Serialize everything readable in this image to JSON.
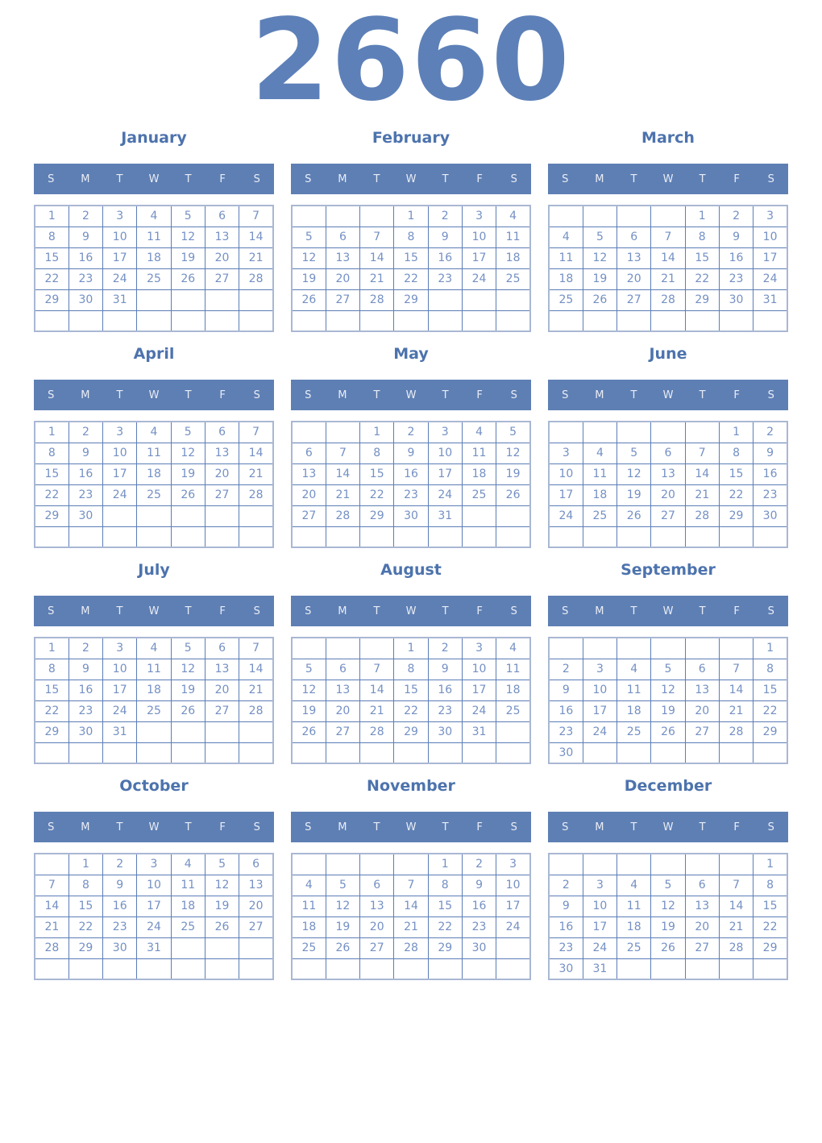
{
  "year": "2660",
  "weekday_headers": [
    "S",
    "M",
    "T",
    "W",
    "T",
    "F",
    "S"
  ],
  "colors": {
    "year_text": "#5d80b8",
    "month_title": "#4d73ad",
    "weekday_bar_bg": "#5e7fb4",
    "weekday_bar_text": "#e9edf5",
    "cell_border": "#5b7db6",
    "outer_border": "#a9b7d3",
    "day_text": "#7490c4"
  },
  "months": [
    {
      "name": "January",
      "weeks": [
        [
          "1",
          "2",
          "3",
          "4",
          "5",
          "6",
          "7"
        ],
        [
          "8",
          "9",
          "10",
          "11",
          "12",
          "13",
          "14"
        ],
        [
          "15",
          "16",
          "17",
          "18",
          "19",
          "20",
          "21"
        ],
        [
          "22",
          "23",
          "24",
          "25",
          "26",
          "27",
          "28"
        ],
        [
          "29",
          "30",
          "31",
          "",
          "",
          "",
          ""
        ],
        [
          "",
          "",
          "",
          "",
          "",
          "",
          ""
        ]
      ]
    },
    {
      "name": "February",
      "weeks": [
        [
          "",
          "",
          "",
          "1",
          "2",
          "3",
          "4"
        ],
        [
          "5",
          "6",
          "7",
          "8",
          "9",
          "10",
          "11"
        ],
        [
          "12",
          "13",
          "14",
          "15",
          "16",
          "17",
          "18"
        ],
        [
          "19",
          "20",
          "21",
          "22",
          "23",
          "24",
          "25"
        ],
        [
          "26",
          "27",
          "28",
          "29",
          "",
          "",
          ""
        ],
        [
          "",
          "",
          "",
          "",
          "",
          "",
          ""
        ]
      ]
    },
    {
      "name": "March",
      "weeks": [
        [
          "",
          "",
          "",
          "",
          "1",
          "2",
          "3"
        ],
        [
          "4",
          "5",
          "6",
          "7",
          "8",
          "9",
          "10"
        ],
        [
          "11",
          "12",
          "13",
          "14",
          "15",
          "16",
          "17"
        ],
        [
          "18",
          "19",
          "20",
          "21",
          "22",
          "23",
          "24"
        ],
        [
          "25",
          "26",
          "27",
          "28",
          "29",
          "30",
          "31"
        ],
        [
          "",
          "",
          "",
          "",
          "",
          "",
          ""
        ]
      ]
    },
    {
      "name": "April",
      "weeks": [
        [
          "1",
          "2",
          "3",
          "4",
          "5",
          "6",
          "7"
        ],
        [
          "8",
          "9",
          "10",
          "11",
          "12",
          "13",
          "14"
        ],
        [
          "15",
          "16",
          "17",
          "18",
          "19",
          "20",
          "21"
        ],
        [
          "22",
          "23",
          "24",
          "25",
          "26",
          "27",
          "28"
        ],
        [
          "29",
          "30",
          "",
          "",
          "",
          "",
          ""
        ],
        [
          "",
          "",
          "",
          "",
          "",
          "",
          ""
        ]
      ]
    },
    {
      "name": "May",
      "weeks": [
        [
          "",
          "",
          "1",
          "2",
          "3",
          "4",
          "5"
        ],
        [
          "6",
          "7",
          "8",
          "9",
          "10",
          "11",
          "12"
        ],
        [
          "13",
          "14",
          "15",
          "16",
          "17",
          "18",
          "19"
        ],
        [
          "20",
          "21",
          "22",
          "23",
          "24",
          "25",
          "26"
        ],
        [
          "27",
          "28",
          "29",
          "30",
          "31",
          "",
          ""
        ],
        [
          "",
          "",
          "",
          "",
          "",
          "",
          ""
        ]
      ]
    },
    {
      "name": "June",
      "weeks": [
        [
          "",
          "",
          "",
          "",
          "",
          "1",
          "2"
        ],
        [
          "3",
          "4",
          "5",
          "6",
          "7",
          "8",
          "9"
        ],
        [
          "10",
          "11",
          "12",
          "13",
          "14",
          "15",
          "16"
        ],
        [
          "17",
          "18",
          "19",
          "20",
          "21",
          "22",
          "23"
        ],
        [
          "24",
          "25",
          "26",
          "27",
          "28",
          "29",
          "30"
        ],
        [
          "",
          "",
          "",
          "",
          "",
          "",
          ""
        ]
      ]
    },
    {
      "name": "July",
      "weeks": [
        [
          "1",
          "2",
          "3",
          "4",
          "5",
          "6",
          "7"
        ],
        [
          "8",
          "9",
          "10",
          "11",
          "12",
          "13",
          "14"
        ],
        [
          "15",
          "16",
          "17",
          "18",
          "19",
          "20",
          "21"
        ],
        [
          "22",
          "23",
          "24",
          "25",
          "26",
          "27",
          "28"
        ],
        [
          "29",
          "30",
          "31",
          "",
          "",
          "",
          ""
        ],
        [
          "",
          "",
          "",
          "",
          "",
          "",
          ""
        ]
      ]
    },
    {
      "name": "August",
      "weeks": [
        [
          "",
          "",
          "",
          "1",
          "2",
          "3",
          "4"
        ],
        [
          "5",
          "6",
          "7",
          "8",
          "9",
          "10",
          "11"
        ],
        [
          "12",
          "13",
          "14",
          "15",
          "16",
          "17",
          "18"
        ],
        [
          "19",
          "20",
          "21",
          "22",
          "23",
          "24",
          "25"
        ],
        [
          "26",
          "27",
          "28",
          "29",
          "30",
          "31",
          ""
        ],
        [
          "",
          "",
          "",
          "",
          "",
          "",
          ""
        ]
      ]
    },
    {
      "name": "September",
      "weeks": [
        [
          "",
          "",
          "",
          "",
          "",
          "",
          "1"
        ],
        [
          "2",
          "3",
          "4",
          "5",
          "6",
          "7",
          "8"
        ],
        [
          "9",
          "10",
          "11",
          "12",
          "13",
          "14",
          "15"
        ],
        [
          "16",
          "17",
          "18",
          "19",
          "20",
          "21",
          "22"
        ],
        [
          "23",
          "24",
          "25",
          "26",
          "27",
          "28",
          "29"
        ],
        [
          "30",
          "",
          "",
          "",
          "",
          "",
          ""
        ]
      ]
    },
    {
      "name": "October",
      "weeks": [
        [
          "",
          "1",
          "2",
          "3",
          "4",
          "5",
          "6"
        ],
        [
          "7",
          "8",
          "9",
          "10",
          "11",
          "12",
          "13"
        ],
        [
          "14",
          "15",
          "16",
          "17",
          "18",
          "19",
          "20"
        ],
        [
          "21",
          "22",
          "23",
          "24",
          "25",
          "26",
          "27"
        ],
        [
          "28",
          "29",
          "30",
          "31",
          "",
          "",
          ""
        ],
        [
          "",
          "",
          "",
          "",
          "",
          "",
          ""
        ]
      ]
    },
    {
      "name": "November",
      "weeks": [
        [
          "",
          "",
          "",
          "",
          "1",
          "2",
          "3"
        ],
        [
          "4",
          "5",
          "6",
          "7",
          "8",
          "9",
          "10"
        ],
        [
          "11",
          "12",
          "13",
          "14",
          "15",
          "16",
          "17"
        ],
        [
          "18",
          "19",
          "20",
          "21",
          "22",
          "23",
          "24"
        ],
        [
          "25",
          "26",
          "27",
          "28",
          "29",
          "30",
          ""
        ],
        [
          "",
          "",
          "",
          "",
          "",
          "",
          ""
        ]
      ]
    },
    {
      "name": "December",
      "weeks": [
        [
          "",
          "",
          "",
          "",
          "",
          "",
          "1"
        ],
        [
          "2",
          "3",
          "4",
          "5",
          "6",
          "7",
          "8"
        ],
        [
          "9",
          "10",
          "11",
          "12",
          "13",
          "14",
          "15"
        ],
        [
          "16",
          "17",
          "18",
          "19",
          "20",
          "21",
          "22"
        ],
        [
          "23",
          "24",
          "25",
          "26",
          "27",
          "28",
          "29"
        ],
        [
          "30",
          "31",
          "",
          "",
          "",
          "",
          ""
        ]
      ]
    }
  ]
}
